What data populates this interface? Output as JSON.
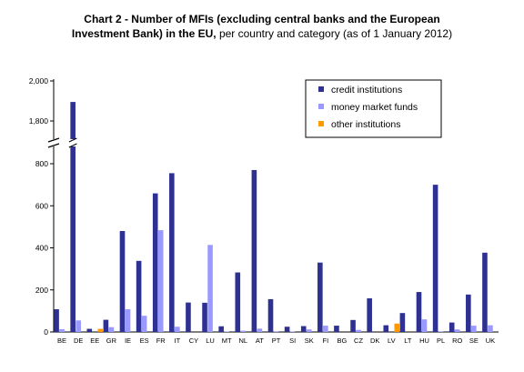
{
  "chart_data": {
    "type": "bar",
    "title_bold_line1": "Chart 2 - Number of MFIs (excluding central banks and the European",
    "title_bold_line2": "Investment Bank) in the EU,",
    "title_normal": " per country and category (as of 1 January 2012)",
    "categories": [
      "BE",
      "DE",
      "EE",
      "GR",
      "IE",
      "ES",
      "FR",
      "IT",
      "CY",
      "LU",
      "MT",
      "NL",
      "AT",
      "PT",
      "SI",
      "SK",
      "FI",
      "BG",
      "CZ",
      "DK",
      "LV",
      "LT",
      "HU",
      "PL",
      "RO",
      "SE",
      "UK"
    ],
    "series": [
      {
        "name": "credit institutions",
        "color": "#2e3192",
        "values": [
          108,
          1895,
          15,
          58,
          480,
          338,
          659,
          755,
          140,
          139,
          27,
          283,
          770,
          156,
          25,
          28,
          330,
          30,
          57,
          160,
          32,
          90,
          190,
          700,
          45,
          178,
          377
        ]
      },
      {
        "name": "money market funds",
        "color": "#9999ff",
        "values": [
          13,
          55,
          0,
          23,
          108,
          77,
          484,
          25,
          0,
          414,
          2,
          6,
          16,
          3,
          2,
          12,
          30,
          0,
          10,
          0,
          0,
          0,
          60,
          3,
          12,
          30,
          32
        ]
      },
      {
        "name": "other institutions",
        "color": "#ff9900",
        "values": [
          0,
          0,
          15,
          0,
          0,
          0,
          0,
          0,
          0,
          0,
          0,
          0,
          0,
          0,
          0,
          0,
          0,
          0,
          0,
          0,
          40,
          0,
          0,
          0,
          0,
          0,
          0
        ]
      }
    ],
    "yticks_lower": [
      "0",
      "200",
      "400",
      "600",
      "800"
    ],
    "yticks_upper": [
      "1,800",
      "2,000"
    ],
    "ylim_lower": [
      0,
      850
    ],
    "ylim_upper": [
      1700,
      2000
    ],
    "grid": false,
    "legend_position": "top-right"
  }
}
